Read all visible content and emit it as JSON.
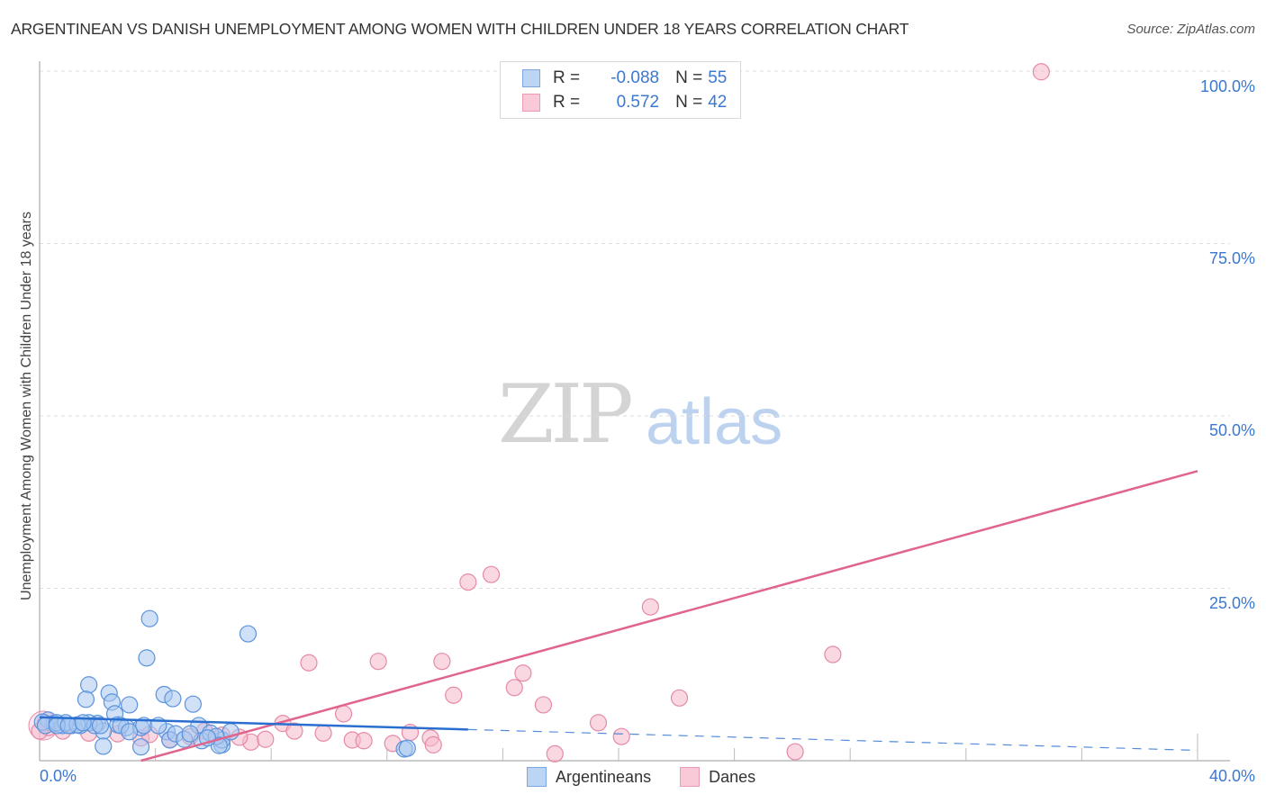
{
  "header": {
    "title": "ARGENTINEAN VS DANISH UNEMPLOYMENT AMONG WOMEN WITH CHILDREN UNDER 18 YEARS CORRELATION CHART",
    "source": "Source: ZipAtlas.com"
  },
  "watermark": {
    "zip": "ZIP",
    "atlas": "atlas"
  },
  "legend": {
    "rows": [
      {
        "r_label": "R =",
        "r_value": "-0.088",
        "n_label": "N =",
        "n_value": "55",
        "color": "#a9c8f0"
      },
      {
        "r_label": "R =",
        "r_value": "0.572",
        "n_label": "N =",
        "n_value": "42",
        "color": "#f6b8ca"
      }
    ]
  },
  "bottom_legend": {
    "items": [
      {
        "label": "Argentineans",
        "color": "#a9c8f0"
      },
      {
        "label": "Danes",
        "color": "#f6b8ca"
      }
    ]
  },
  "axes": {
    "ylabel": "Unemployment Among Women with Children Under 18 years",
    "yticks": [
      "100.0%",
      "75.0%",
      "50.0%",
      "25.0%"
    ],
    "xticks": [
      "0.0%",
      "40.0%"
    ]
  },
  "chart_data": {
    "type": "scatter",
    "title": "ARGENTINEAN VS DANISH UNEMPLOYMENT AMONG WOMEN WITH CHILDREN UNDER 18 YEARS CORRELATION CHART",
    "xlabel": "",
    "ylabel": "Unemployment Among Women with Children Under 18 years",
    "xlim": [
      0,
      40
    ],
    "ylim": [
      0,
      100
    ],
    "x_tick_labels": [
      "0.0%",
      "40.0%"
    ],
    "y_tick_labels": [
      "25.0%",
      "50.0%",
      "75.0%",
      "100.0%"
    ],
    "grid": true,
    "legend_position": "top-center",
    "series": [
      {
        "name": "Argentineans",
        "color": "#a9c8f0",
        "stroke": "#5b93dc",
        "R": -0.088,
        "N": 55,
        "trend": {
          "x0": 0,
          "y0": 6.3,
          "x1": 40,
          "y1": 1.5,
          "solid_until_x": 14.8
        },
        "points": [
          [
            3.8,
            20.6
          ],
          [
            3.7,
            14.9
          ],
          [
            1.7,
            11.0
          ],
          [
            1.6,
            8.9
          ],
          [
            2.4,
            9.8
          ],
          [
            2.5,
            8.5
          ],
          [
            3.1,
            8.1
          ],
          [
            2.6,
            6.8
          ],
          [
            4.3,
            9.6
          ],
          [
            4.6,
            9.0
          ],
          [
            5.3,
            8.2
          ],
          [
            7.2,
            18.4
          ],
          [
            2.0,
            5.4
          ],
          [
            2.7,
            5.2
          ],
          [
            0.3,
            5.9
          ],
          [
            0.5,
            5.4
          ],
          [
            0.8,
            5.1
          ],
          [
            1.1,
            5.1
          ],
          [
            1.4,
            5.1
          ],
          [
            0.1,
            5.6
          ],
          [
            0.2,
            5.1
          ],
          [
            1.7,
            5.5
          ],
          [
            2.2,
            4.3
          ],
          [
            3.0,
            4.8
          ],
          [
            3.5,
            4.8
          ],
          [
            4.4,
            4.2
          ],
          [
            4.5,
            3.0
          ],
          [
            5.5,
            5.1
          ],
          [
            5.6,
            2.9
          ],
          [
            6.3,
            2.3
          ],
          [
            6.3,
            3.0
          ],
          [
            6.6,
            4.2
          ],
          [
            3.5,
            2.0
          ],
          [
            2.2,
            2.1
          ],
          [
            12.6,
            1.7
          ],
          [
            12.7,
            1.8
          ],
          [
            0.6,
            5.5
          ],
          [
            0.9,
            5.5
          ],
          [
            1.3,
            5.2
          ],
          [
            1.9,
            5.1
          ],
          [
            2.1,
            5.1
          ],
          [
            2.8,
            5.1
          ],
          [
            3.1,
            4.2
          ],
          [
            4.7,
            3.9
          ],
          [
            5.0,
            3.1
          ],
          [
            5.2,
            3.9
          ],
          [
            5.9,
            4.0
          ],
          [
            6.1,
            3.5
          ],
          [
            6.2,
            2.2
          ],
          [
            0.6,
            5.1
          ],
          [
            1.0,
            5.1
          ],
          [
            1.5,
            5.5
          ],
          [
            3.6,
            5.1
          ],
          [
            4.1,
            5.1
          ],
          [
            5.8,
            3.3
          ]
        ]
      },
      {
        "name": "Danes",
        "color": "#f6b8ca",
        "stroke": "#e58aa6",
        "R": 0.572,
        "N": 42,
        "trend": {
          "x0": 3.5,
          "y0": 0,
          "x1": 40,
          "y1": 42.0
        },
        "points": [
          [
            34.6,
            99.9
          ],
          [
            15.6,
            27.0
          ],
          [
            14.8,
            25.9
          ],
          [
            21.1,
            22.3
          ],
          [
            27.4,
            15.4
          ],
          [
            9.3,
            14.2
          ],
          [
            11.7,
            14.4
          ],
          [
            13.9,
            14.4
          ],
          [
            16.7,
            12.7
          ],
          [
            16.4,
            10.6
          ],
          [
            14.3,
            9.5
          ],
          [
            22.1,
            9.1
          ],
          [
            17.4,
            8.1
          ],
          [
            10.5,
            6.8
          ],
          [
            19.3,
            5.5
          ],
          [
            8.4,
            5.4
          ],
          [
            12.8,
            4.1
          ],
          [
            20.1,
            3.5
          ],
          [
            0.3,
            4.8
          ],
          [
            0.2,
            5.5
          ],
          [
            0.0,
            4.3
          ],
          [
            2.7,
            3.9
          ],
          [
            3.5,
            3.3
          ],
          [
            4.5,
            3.1
          ],
          [
            5.7,
            4.3
          ],
          [
            6.3,
            3.7
          ],
          [
            7.3,
            2.7
          ],
          [
            7.8,
            3.1
          ],
          [
            8.8,
            4.3
          ],
          [
            9.8,
            4.0
          ],
          [
            10.8,
            3.0
          ],
          [
            11.2,
            2.9
          ],
          [
            12.2,
            2.5
          ],
          [
            13.5,
            3.3
          ],
          [
            17.8,
            1.0
          ],
          [
            26.1,
            1.3
          ],
          [
            0.8,
            4.3
          ],
          [
            1.7,
            4.0
          ],
          [
            3.8,
            3.8
          ],
          [
            5.2,
            3.5
          ],
          [
            6.9,
            3.4
          ],
          [
            13.6,
            2.3
          ]
        ]
      }
    ]
  }
}
